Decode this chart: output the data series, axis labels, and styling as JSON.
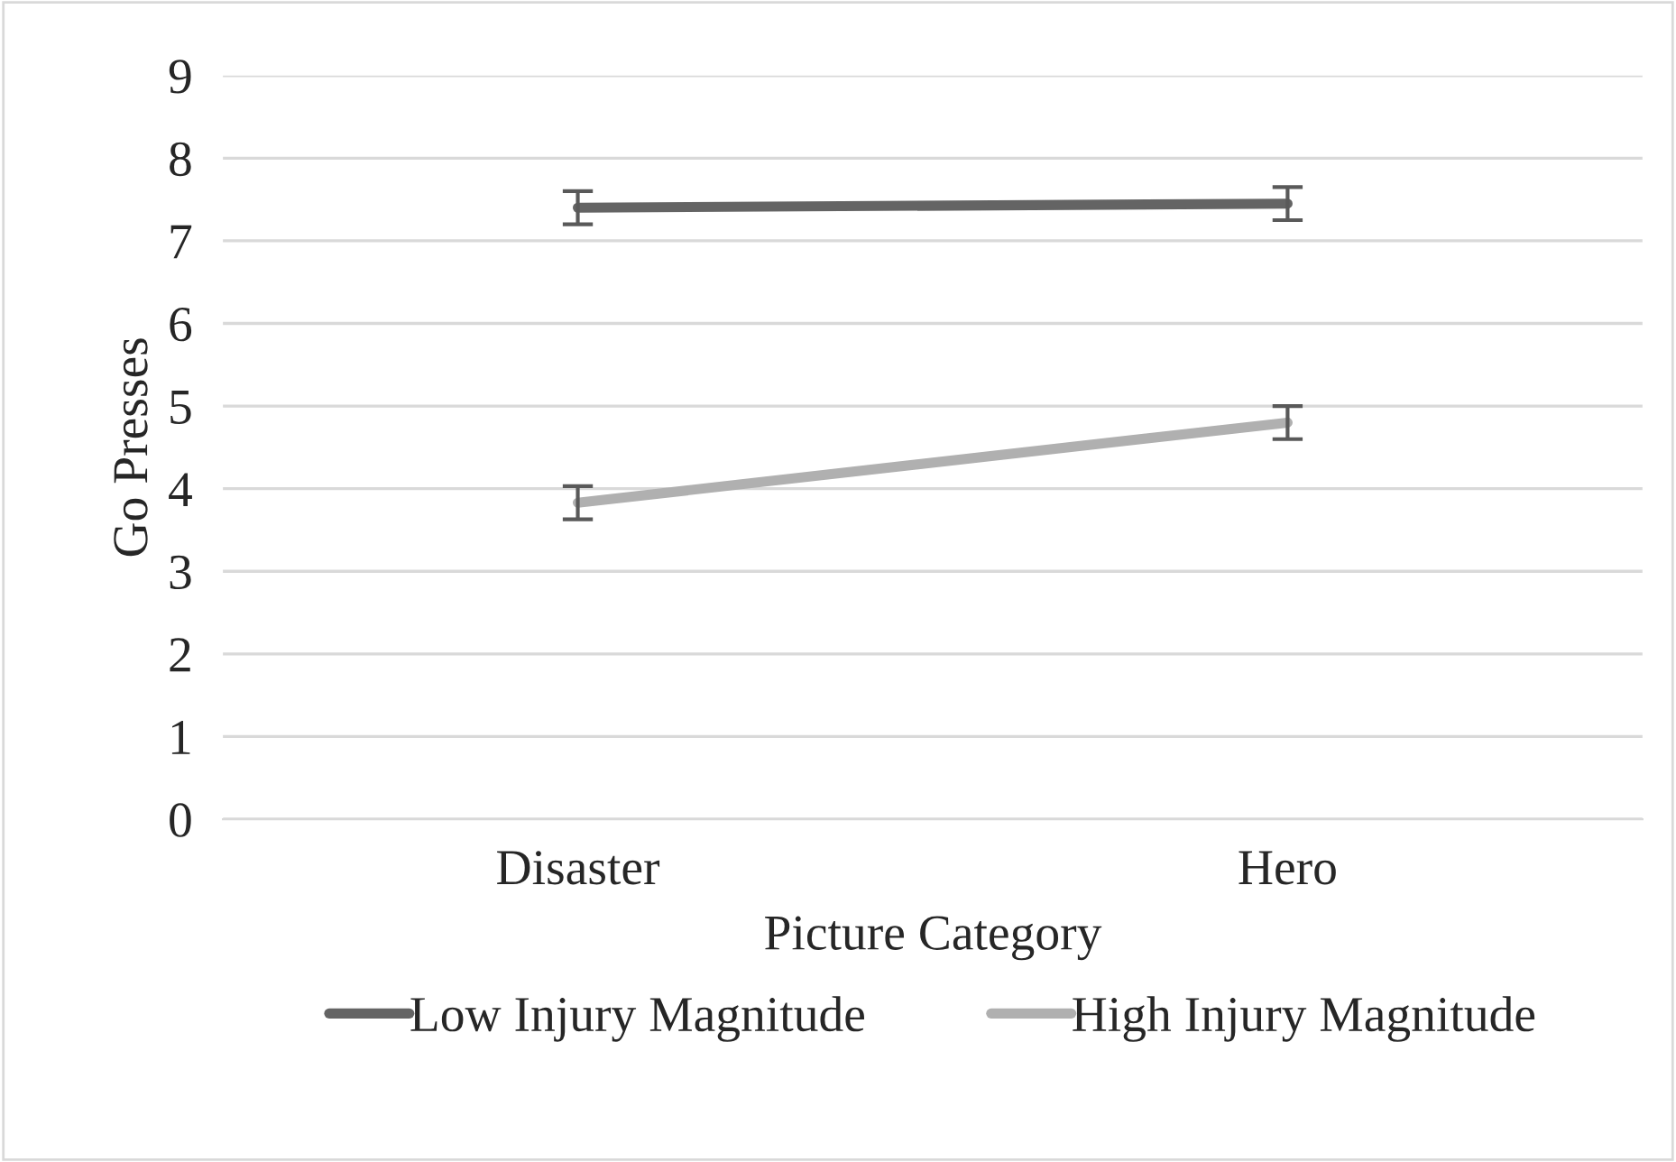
{
  "chart_data": {
    "type": "line",
    "xlabel": "Picture Category",
    "ylabel": "Go Presses",
    "categories": [
      "Disaster",
      "Hero"
    ],
    "series": [
      {
        "name": "Low Injury Magnitude",
        "color": "#646464",
        "values": [
          7.4,
          7.45
        ],
        "errors": [
          0.2,
          0.2
        ]
      },
      {
        "name": "High Injury Magnitude",
        "color": "#b0b0b0",
        "values": [
          3.83,
          4.8
        ],
        "errors": [
          0.2,
          0.2
        ]
      }
    ],
    "ylim": [
      0,
      9
    ],
    "yticks": [
      0,
      1,
      2,
      3,
      4,
      5,
      6,
      7,
      8,
      9
    ],
    "grid": "y",
    "legend": "bottom",
    "marker": "none",
    "line_style": "solid"
  }
}
